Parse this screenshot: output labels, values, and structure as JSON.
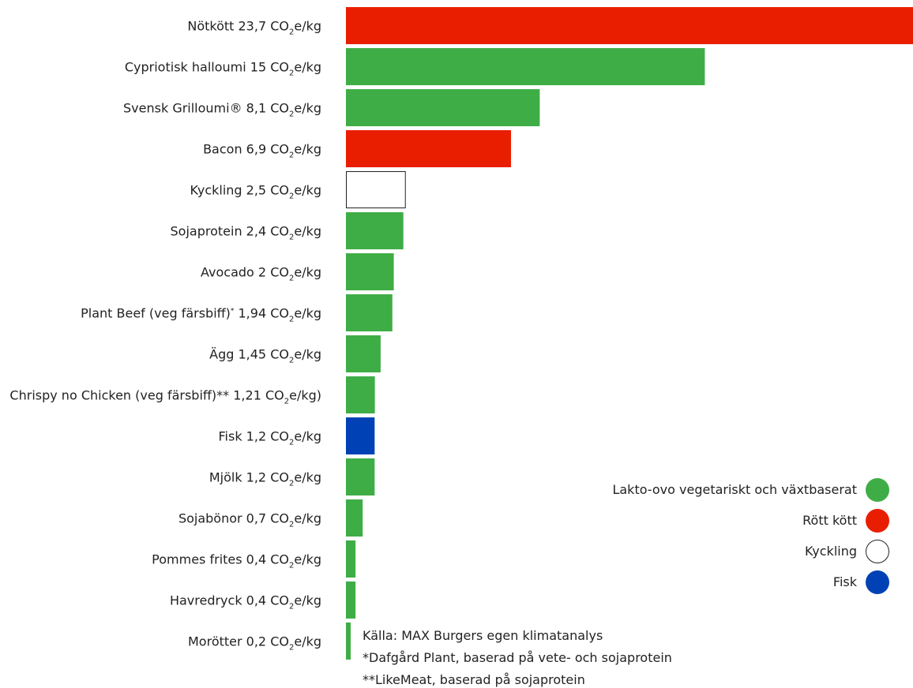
{
  "chart_data": {
    "type": "bar",
    "orientation": "horizontal",
    "unit": "CO₂e/kg",
    "xlim": [
      0,
      23.7
    ],
    "grid": false,
    "categories": [
      "Nötkött",
      "Cypriotisk halloumi",
      "Svensk Grilloumi®",
      "Bacon",
      "Kyckling",
      "Sojaprotein",
      "Avocado",
      "Plant Beef (veg färsbiff)",
      "Ägg",
      "Chrispy no Chicken (veg färsbiff)",
      "Fisk",
      "Mjölk",
      "Sojabönor",
      "Pommes frites",
      "Havredryck",
      "Morötter"
    ],
    "labels": [
      {
        "pre": "Nötkött 23,7 CO",
        "sub": "2",
        "post": "e/kg"
      },
      {
        "pre": "Cypriotisk halloumi 15 CO",
        "sub": "2",
        "post": "e/kg"
      },
      {
        "pre": "Svensk Grilloumi® 8,1 CO",
        "sub": "2",
        "post": "e/kg"
      },
      {
        "pre": "Bacon 6,9 CO",
        "sub": "2",
        "post": "e/kg"
      },
      {
        "pre": "Kyckling 2,5 CO",
        "sub": "2",
        "post": "e/kg"
      },
      {
        "pre": "Sojaprotein 2,4 CO",
        "sub": "2",
        "post": "e/kg"
      },
      {
        "pre": "Avocado 2 CO",
        "sub": "2",
        "post": "e/kg"
      },
      {
        "pre": "Plant Beef (veg färsbiff)",
        "sup": "*",
        "mid": " 1,94 CO",
        "sub": "2",
        "post": "e/kg"
      },
      {
        "pre": "Ägg 1,45 CO",
        "sub": "2",
        "post": "e/kg"
      },
      {
        "pre": "Chrispy no Chicken (veg färsbiff)** 1,21 CO",
        "sub": "2",
        "post": "e/kg)"
      },
      {
        "pre": "Fisk 1,2 CO",
        "sub": "2",
        "post": "e/kg"
      },
      {
        "pre": "Mjölk 1,2 CO",
        "sub": "2",
        "post": "e/kg"
      },
      {
        "pre": "Sojabönor 0,7 CO",
        "sub": "2",
        "post": "e/kg"
      },
      {
        "pre": "Pommes frites 0,4 CO",
        "sub": "2",
        "post": "e/kg"
      },
      {
        "pre": "Havredryck 0,4 CO",
        "sub": "2",
        "post": "e/kg"
      },
      {
        "pre": "Morötter 0,2 CO",
        "sub": "2",
        "post": "e/kg"
      }
    ],
    "values": [
      23.7,
      15,
      8.1,
      6.9,
      2.5,
      2.4,
      2,
      1.94,
      1.45,
      1.21,
      1.2,
      1.2,
      0.7,
      0.4,
      0.4,
      0.2
    ],
    "groups": [
      "red",
      "green",
      "green",
      "red",
      "chicken",
      "green",
      "green",
      "green",
      "green",
      "green",
      "fish",
      "green",
      "green",
      "green",
      "green",
      "green"
    ],
    "colors": {
      "green": "#3fad46",
      "red": "#e91e00",
      "chicken": "#ffffff",
      "fish": "#0042b5",
      "outline": "#222222"
    },
    "legend": {
      "placement": "right",
      "items": [
        {
          "group": "green",
          "label": "Lakto-ovo vegetariskt och växtbaserat"
        },
        {
          "group": "red",
          "label": "Rött kött"
        },
        {
          "group": "chicken",
          "label": "Kyckling"
        },
        {
          "group": "fish",
          "label": "Fisk"
        }
      ]
    },
    "notes": [
      "Källa: MAX Burgers egen klimatanalys",
      "*Dafgård Plant, baserad på vete- och sojaprotein",
      "**LikeMeat, baserad på sojaprotein"
    ]
  }
}
